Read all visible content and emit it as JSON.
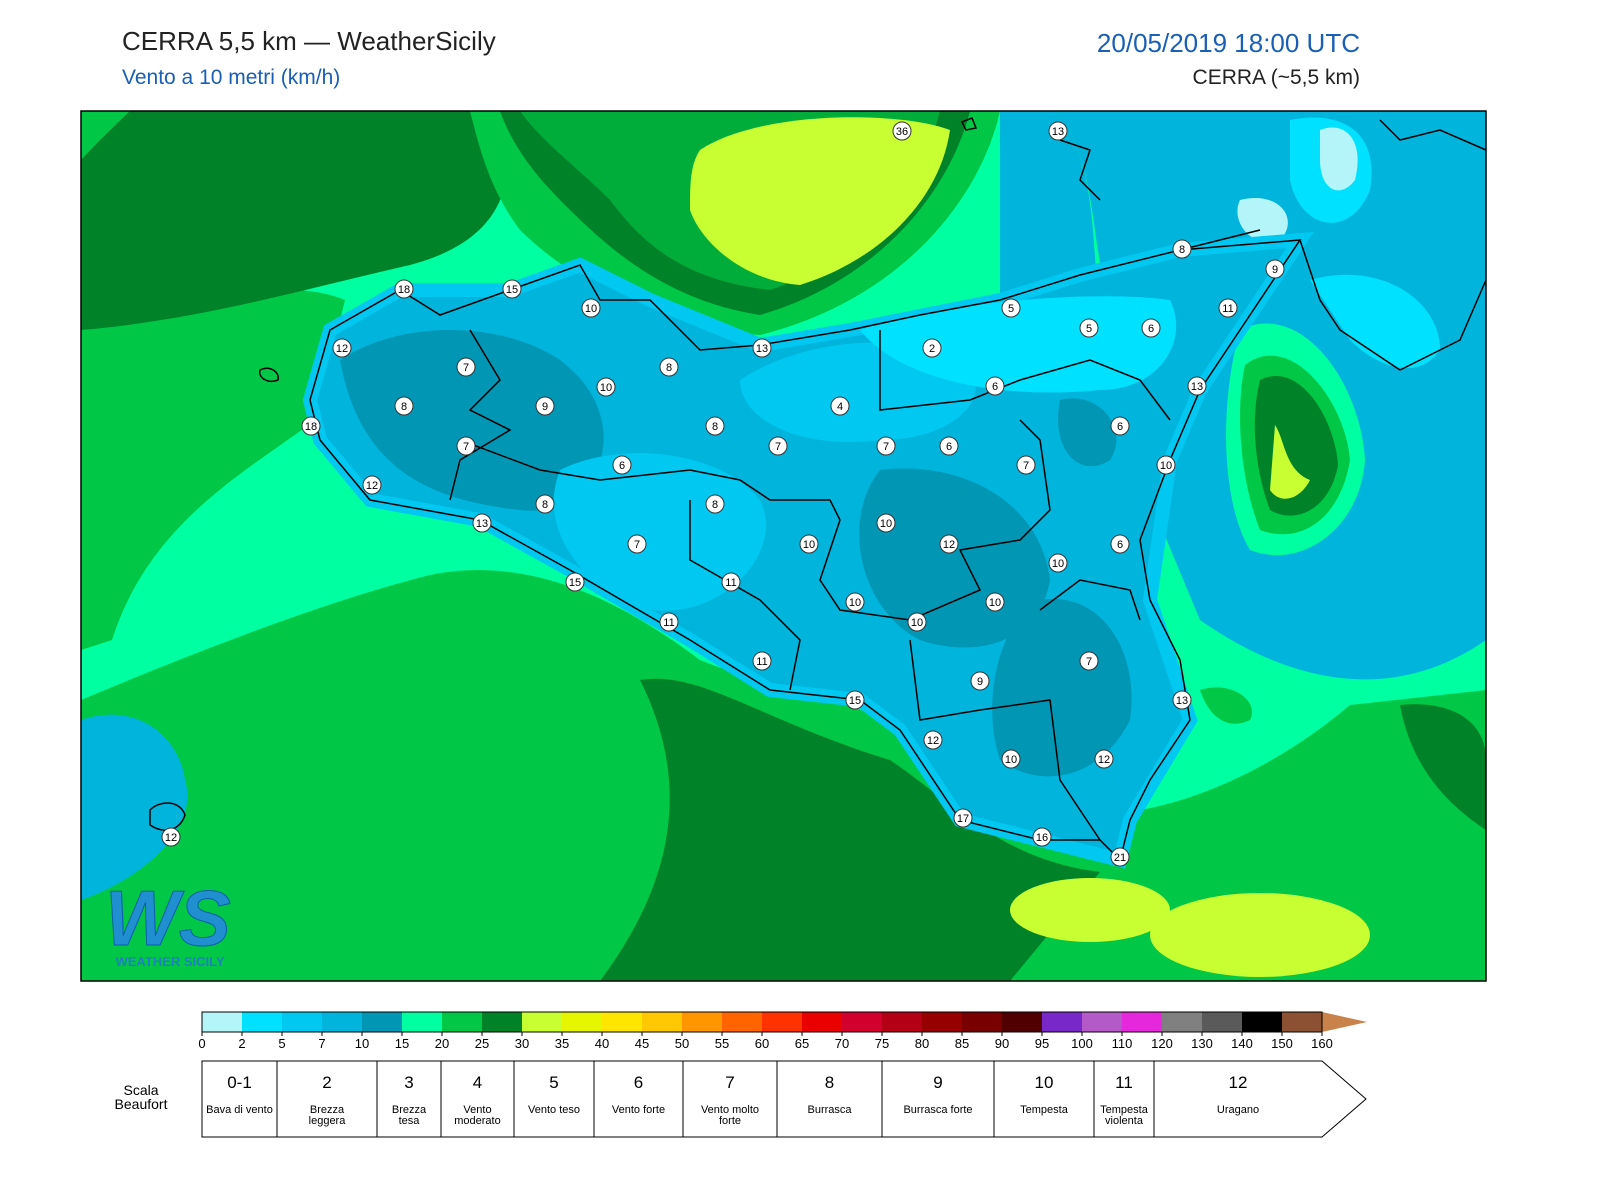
{
  "header": {
    "title": "CERRA 5,5 km — WeatherSicily",
    "subtitle": "Vento a 10 metri (km/h)",
    "datetime": "20/05/2019 18:00 UTC",
    "model": "CERRA (~5,5 km)"
  },
  "map": {
    "station_values": [
      36,
      13,
      8,
      9,
      18,
      15,
      10,
      5,
      5,
      6,
      11,
      12,
      13,
      2,
      7,
      8,
      10,
      6,
      13,
      8,
      9,
      4,
      18,
      8,
      6,
      7,
      7,
      7,
      6,
      6,
      7,
      10,
      12,
      8,
      8,
      13,
      10,
      7,
      10,
      12,
      6,
      10,
      15,
      11,
      10,
      10,
      11,
      10,
      7,
      11,
      9,
      15,
      13,
      12,
      10,
      12,
      17,
      16,
      12,
      21
    ]
  },
  "logo": {
    "mark": "WS",
    "text": "WEATHER SICILY"
  },
  "colorbar": {
    "ticks": [
      0,
      2,
      5,
      7,
      10,
      15,
      20,
      25,
      30,
      35,
      40,
      45,
      50,
      55,
      60,
      65,
      70,
      75,
      80,
      85,
      90,
      95,
      100,
      110,
      120,
      130,
      140,
      150,
      160
    ],
    "colors": [
      "#b4f5fa",
      "#00e1ff",
      "#00c8f0",
      "#00b4dc",
      "#0096b4",
      "#00ffa0",
      "#00c846",
      "#008228",
      "#c8ff32",
      "#e6f500",
      "#ffe600",
      "#ffc800",
      "#ff9600",
      "#ff6400",
      "#ff3200",
      "#eb0000",
      "#d2002d",
      "#b40014",
      "#960000",
      "#780000",
      "#500000",
      "#7828c8",
      "#b45ac8",
      "#e628dc",
      "#808080",
      "#5a5a5a",
      "#000000",
      "#8c5032",
      "#c8824a"
    ]
  },
  "beaufort": {
    "label": "Scala Beaufort",
    "levels": [
      {
        "grade": "0-1",
        "description": "Bava di vento"
      },
      {
        "grade": "2",
        "description": "Brezza leggera"
      },
      {
        "grade": "3",
        "description": "Brezza tesa"
      },
      {
        "grade": "4",
        "description": "Vento moderato"
      },
      {
        "grade": "5",
        "description": "Vento teso"
      },
      {
        "grade": "6",
        "description": "Vento forte"
      },
      {
        "grade": "7",
        "description": "Vento molto forte"
      },
      {
        "grade": "8",
        "description": "Burrasca"
      },
      {
        "grade": "9",
        "description": "Burrasca forte"
      },
      {
        "grade": "10",
        "description": "Tempesta"
      },
      {
        "grade": "11",
        "description": "Tempesta violenta"
      },
      {
        "grade": "12",
        "description": "Uragano"
      }
    ]
  }
}
